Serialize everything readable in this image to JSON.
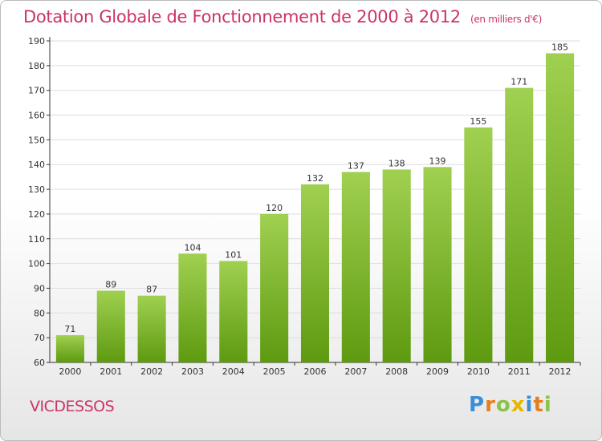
{
  "header": {
    "title": "Dotation Globale de Fonctionnement de 2000 à 2012",
    "subtitle": "(en milliers d'€)"
  },
  "footer": {
    "commune": "VICDESSOS",
    "logo_text": "Proxiti"
  },
  "colors": {
    "title": "#cc3366",
    "bar_light": "#a0d050",
    "bar_dark": "#5e9a10",
    "axis": "#333333",
    "grid": "#dddddd"
  },
  "chart_data": {
    "type": "bar",
    "categories": [
      "2000",
      "2001",
      "2002",
      "2003",
      "2004",
      "2005",
      "2006",
      "2007",
      "2008",
      "2009",
      "2010",
      "2011",
      "2012"
    ],
    "values": [
      71,
      89,
      87,
      104,
      101,
      120,
      132,
      137,
      138,
      139,
      155,
      171,
      185
    ],
    "ylim": [
      60,
      190
    ],
    "yticks": [
      60,
      70,
      80,
      90,
      100,
      110,
      120,
      130,
      140,
      150,
      160,
      170,
      180,
      190
    ],
    "xlabel": "",
    "ylabel": "",
    "grid": true,
    "data_labels": true
  }
}
